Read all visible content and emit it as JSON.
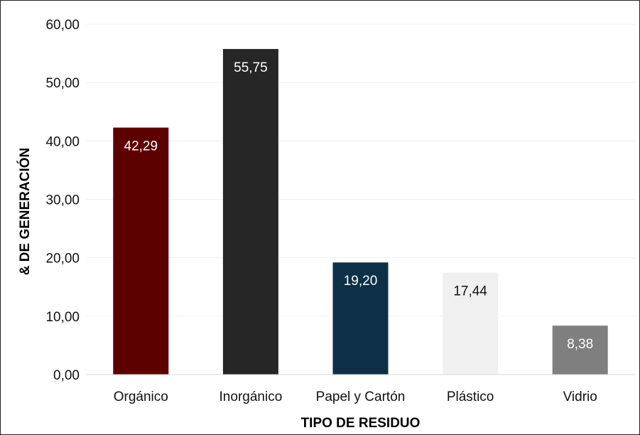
{
  "chart_data": {
    "type": "bar",
    "title": "",
    "xlabel": "TIPO DE RESIDUO",
    "ylabel": "& DE GENERACIÓN",
    "categories": [
      "Orgánico",
      "Inorgánico",
      "Papel y Cartón",
      "Plástico",
      "Vidrio"
    ],
    "values": [
      42.29,
      55.75,
      19.2,
      17.44,
      8.38
    ],
    "value_labels": [
      "42,29",
      "55,75",
      "19,20",
      "17,44",
      "8,38"
    ],
    "bar_colors": [
      "#5c0000",
      "#262626",
      "#0d3047",
      "#f0f0f0",
      "#7f7f7f"
    ],
    "label_colors": [
      "#ffffff",
      "#ffffff",
      "#ffffff",
      "#111111",
      "#ffffff"
    ],
    "ylim": [
      0,
      60
    ],
    "yticks": [
      0,
      10,
      20,
      30,
      40,
      50,
      60
    ],
    "ytick_labels": [
      "0,00",
      "10,00",
      "20,00",
      "30,00",
      "40,00",
      "50,00",
      "60,00"
    ],
    "grid": true,
    "legend": "none"
  }
}
